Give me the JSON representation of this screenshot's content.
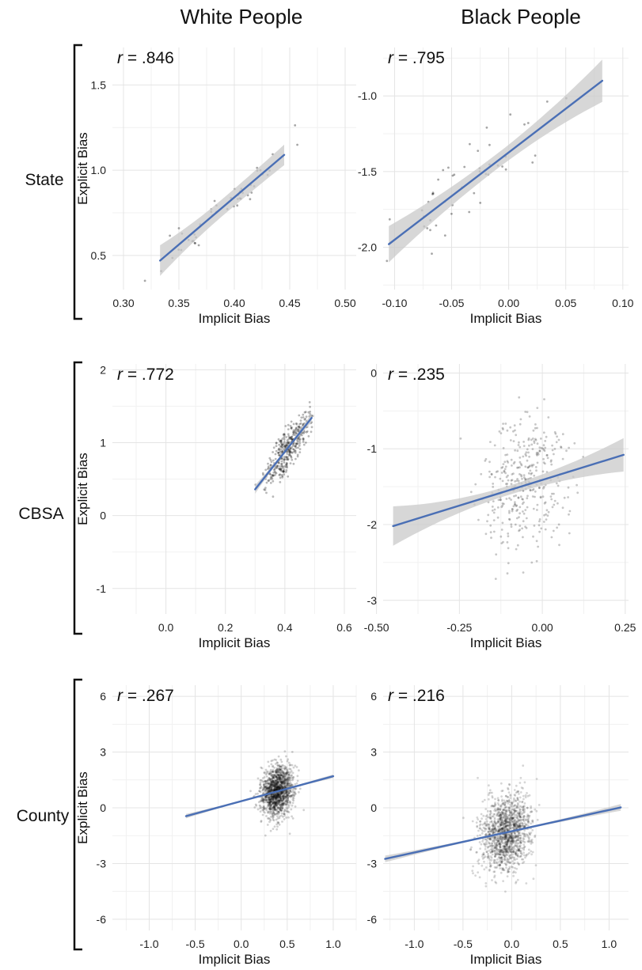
{
  "column_titles": [
    "White People",
    "Black People"
  ],
  "row_labels": [
    "State",
    "CBSA",
    "County"
  ],
  "chart_data": [
    {
      "type": "scatter",
      "row": "State",
      "column": "White People",
      "r_text": ".846",
      "xlabel": "Implicit Bias",
      "ylabel": "Explicit Bias",
      "xlim": [
        0.29,
        0.51
      ],
      "ylim": [
        0.3,
        1.72
      ],
      "xticks": [
        0.3,
        0.35,
        0.4,
        0.45,
        0.5
      ],
      "xtick_labels": [
        "0.30",
        "0.35",
        "0.40",
        "0.45",
        "0.50"
      ],
      "yticks": [
        0.5,
        1.0,
        1.5
      ],
      "ytick_labels": [
        "0.5",
        "1.0",
        "1.5"
      ],
      "fit": {
        "x": [
          0.333,
          0.445
        ],
        "y": [
          0.47,
          1.09
        ]
      },
      "band_halfwidth": [
        0.09,
        0.05,
        0.06
      ],
      "points": {
        "n": 50,
        "x_center": 0.39,
        "x_sd": 0.028,
        "y_sd": 0.06,
        "seed": 11
      },
      "point_opacity": 0.35
    },
    {
      "type": "scatter",
      "row": "State",
      "column": "Black People",
      "r_text": ".795",
      "xlabel": "Implicit Bias",
      "ylabel": "",
      "xlim": [
        -0.11,
        0.105
      ],
      "ylim": [
        -2.28,
        -0.68
      ],
      "xticks": [
        -0.1,
        -0.05,
        0.0,
        0.05,
        0.1
      ],
      "xtick_labels": [
        "-0.10",
        "-0.05",
        "0.00",
        "0.05",
        "0.10"
      ],
      "yticks": [
        -2.0,
        -1.5,
        -1.0
      ],
      "ytick_labels": [
        "-2.0",
        "-1.5",
        "-1.0"
      ],
      "fit": {
        "x": [
          -0.105,
          0.082
        ],
        "y": [
          -1.98,
          -0.9
        ]
      },
      "band_halfwidth": [
        0.12,
        0.05,
        0.14
      ],
      "points": {
        "n": 50,
        "x_center": -0.03,
        "x_sd": 0.035,
        "y_sd": 0.11,
        "seed": 23
      },
      "point_opacity": 0.35
    },
    {
      "type": "scatter",
      "row": "CBSA",
      "column": "White People",
      "r_text": ".772",
      "xlabel": "Implicit Bias",
      "ylabel": "Explicit Bias",
      "xlim": [
        -0.18,
        0.64
      ],
      "ylim": [
        -1.35,
        2.08
      ],
      "xticks": [
        0.0,
        0.2,
        0.4,
        0.6
      ],
      "xtick_labels": [
        "0.0",
        "0.2",
        "0.4",
        "0.6"
      ],
      "yticks": [
        -1,
        0,
        1,
        2
      ],
      "ytick_labels": [
        "-1",
        "0",
        "1",
        "2"
      ],
      "fit": {
        "x": [
          0.3,
          0.49
        ],
        "y": [
          0.36,
          1.34
        ]
      },
      "band_halfwidth": [
        0.06,
        0.02,
        0.06
      ],
      "points": {
        "n": 380,
        "x_center": 0.41,
        "x_sd": 0.035,
        "y_sd": 0.14,
        "seed": 37
      },
      "point_opacity": 0.28
    },
    {
      "type": "scatter",
      "row": "CBSA",
      "column": "Black People",
      "r_text": ".235",
      "xlabel": "Implicit Bias",
      "ylabel": "",
      "xlim": [
        -0.48,
        0.26
      ],
      "ylim": [
        -3.18,
        0.12
      ],
      "xticks": [
        -0.5,
        -0.25,
        0.0,
        0.25
      ],
      "xtick_labels": [
        "-0.50",
        "-0.25",
        "0.00",
        "0.25"
      ],
      "yticks": [
        -3,
        -2,
        -1,
        0
      ],
      "ytick_labels": [
        "-3",
        "-2",
        "-1",
        "0"
      ],
      "fit": {
        "x": [
          -0.45,
          0.245
        ],
        "y": [
          -2.02,
          -1.08
        ]
      },
      "band_halfwidth": [
        0.26,
        0.06,
        0.22
      ],
      "points": {
        "n": 380,
        "x_center": -0.05,
        "x_sd": 0.065,
        "y_sd": 0.45,
        "seed": 51
      },
      "point_opacity": 0.22
    },
    {
      "type": "scatter",
      "row": "County",
      "column": "White People",
      "r_text": ".267",
      "xlabel": "Implicit Bias",
      "ylabel": "Explicit Bias",
      "xlim": [
        -1.4,
        1.25
      ],
      "ylim": [
        -6.6,
        6.6
      ],
      "xticks": [
        -1.0,
        -0.5,
        0.0,
        0.5,
        1.0
      ],
      "xtick_labels": [
        "-1.0",
        "-0.5",
        "0.0",
        "0.5",
        "1.0"
      ],
      "yticks": [
        -6,
        -3,
        0,
        3,
        6
      ],
      "ytick_labels": [
        "-6",
        "-3",
        "0",
        "3",
        "6"
      ],
      "fit": {
        "x": [
          -0.6,
          1.0
        ],
        "y": [
          -0.45,
          1.7
        ]
      },
      "band_halfwidth": [
        0.12,
        0.03,
        0.1
      ],
      "points": {
        "n": 1400,
        "x_center": 0.39,
        "x_sd": 0.085,
        "y_sd": 0.65,
        "seed": 67
      },
      "point_opacity": 0.18
    },
    {
      "type": "scatter",
      "row": "County",
      "column": "Black People",
      "r_text": ".216",
      "xlabel": "Implicit Bias",
      "ylabel": "",
      "xlim": [
        -1.32,
        1.2
      ],
      "ylim": [
        -6.6,
        6.6
      ],
      "xticks": [
        -1.0,
        -0.5,
        0.0,
        0.5,
        1.0
      ],
      "xtick_labels": [
        "-1.0",
        "-0.5",
        "0.0",
        "0.5",
        "1.0"
      ],
      "yticks": [
        -6,
        -3,
        0,
        3,
        6
      ],
      "ytick_labels": [
        "-6",
        "-3",
        "0",
        "3",
        "6"
      ],
      "fit": {
        "x": [
          -1.3,
          1.12
        ],
        "y": [
          -2.75,
          0.02
        ]
      },
      "band_halfwidth": [
        0.18,
        0.04,
        0.18
      ],
      "points": {
        "n": 1400,
        "x_center": -0.06,
        "x_sd": 0.13,
        "y_sd": 1.0,
        "seed": 83
      },
      "point_opacity": 0.16
    }
  ],
  "colors": {
    "fit_line": "#4a6fb5",
    "band": "#c9c9c9",
    "points": "#000000",
    "grid": "#e4e4e4"
  }
}
